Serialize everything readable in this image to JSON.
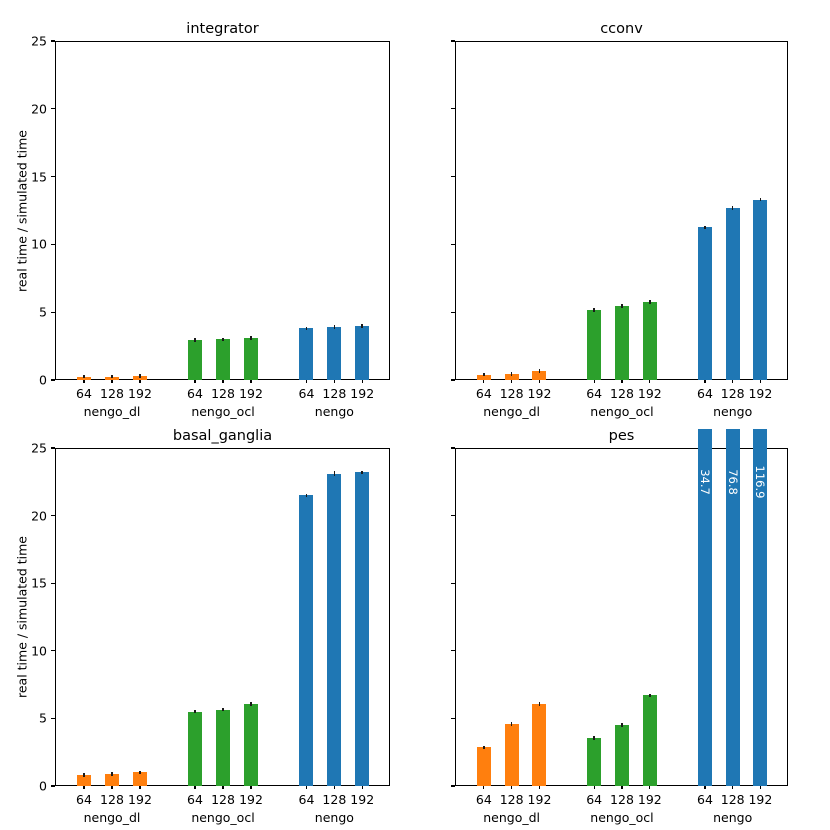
{
  "figure": {
    "ylabel": "real time / simulated time",
    "background_color": "#ffffff",
    "spine_color": "#000000",
    "text_color": "#000000"
  },
  "axis": {
    "ylim": [
      0,
      25
    ],
    "yticks": [
      0,
      5,
      10,
      15,
      20,
      25
    ],
    "ytick_labels": [
      "0",
      "5",
      "10",
      "15",
      "20",
      "25"
    ],
    "categories": [
      "64",
      "128",
      "192"
    ],
    "groups": [
      "nengo_dl",
      "nengo_ocl",
      "nengo"
    ],
    "grid": "off",
    "legend": "none"
  },
  "colors": {
    "nengo_dl": "#ff7f0e",
    "nengo_ocl": "#2ca02c",
    "nengo": "#1f77b4",
    "errorbar": "#1a1a1a"
  },
  "chart_data": [
    {
      "type": "bar",
      "title": "integrator",
      "xlabel": "",
      "ylabel": "real time / simulated time",
      "ylim": [
        0,
        25
      ],
      "categories": [
        "64",
        "128",
        "192"
      ],
      "series": [
        {
          "name": "nengo_dl",
          "color": "#ff7f0e",
          "values": [
            0.25,
            0.25,
            0.3
          ],
          "err": [
            0.03,
            0.03,
            0.04
          ]
        },
        {
          "name": "nengo_ocl",
          "color": "#2ca02c",
          "values": [
            2.95,
            3.0,
            3.1
          ],
          "err": [
            0.06,
            0.06,
            0.08
          ]
        },
        {
          "name": "nengo",
          "color": "#1f77b4",
          "values": [
            3.8,
            3.9,
            4.0
          ],
          "err": [
            0.08,
            0.06,
            0.06
          ]
        }
      ]
    },
    {
      "type": "bar",
      "title": "cconv",
      "xlabel": "",
      "ylabel": "real time / simulated time",
      "ylim": [
        0,
        25
      ],
      "categories": [
        "64",
        "128",
        "192"
      ],
      "series": [
        {
          "name": "nengo_dl",
          "color": "#ff7f0e",
          "values": [
            0.4,
            0.45,
            0.65
          ],
          "err": [
            0.03,
            0.03,
            0.05
          ]
        },
        {
          "name": "nengo_ocl",
          "color": "#2ca02c",
          "values": [
            5.15,
            5.45,
            5.75
          ],
          "err": [
            0.06,
            0.1,
            0.07
          ]
        },
        {
          "name": "nengo",
          "color": "#1f77b4",
          "values": [
            11.25,
            12.7,
            13.3
          ],
          "err": [
            0.1,
            0.15,
            0.1
          ]
        }
      ]
    },
    {
      "type": "bar",
      "title": "basal_ganglia",
      "xlabel": "",
      "ylabel": "real time / simulated time",
      "ylim": [
        0,
        25
      ],
      "categories": [
        "64",
        "128",
        "192"
      ],
      "series": [
        {
          "name": "nengo_dl",
          "color": "#ff7f0e",
          "values": [
            0.8,
            0.9,
            1.0
          ],
          "err": [
            0.03,
            0.04,
            0.04
          ]
        },
        {
          "name": "nengo_ocl",
          "color": "#2ca02c",
          "values": [
            5.5,
            5.65,
            6.05
          ],
          "err": [
            0.08,
            0.06,
            0.06
          ]
        },
        {
          "name": "nengo",
          "color": "#1f77b4",
          "values": [
            21.5,
            23.1,
            23.2
          ],
          "err": [
            0.12,
            0.2,
            0.12
          ]
        }
      ]
    },
    {
      "type": "bar",
      "title": "pes",
      "xlabel": "",
      "ylabel": "real time / simulated time",
      "ylim": [
        0,
        25
      ],
      "categories": [
        "64",
        "128",
        "192"
      ],
      "series": [
        {
          "name": "nengo_dl",
          "color": "#ff7f0e",
          "values": [
            2.85,
            4.6,
            6.05
          ],
          "err": [
            0.04,
            0.05,
            0.06
          ]
        },
        {
          "name": "nengo_ocl",
          "color": "#2ca02c",
          "values": [
            3.55,
            4.5,
            6.7
          ],
          "err": [
            0.1,
            0.07,
            0.07
          ]
        },
        {
          "name": "nengo",
          "color": "#1f77b4",
          "values": [
            34.7,
            76.8,
            116.9
          ],
          "err": [
            0,
            0,
            0
          ],
          "clipped": true
        }
      ],
      "bar_labels": [
        "34.7",
        "76.8",
        "116.9"
      ]
    }
  ]
}
